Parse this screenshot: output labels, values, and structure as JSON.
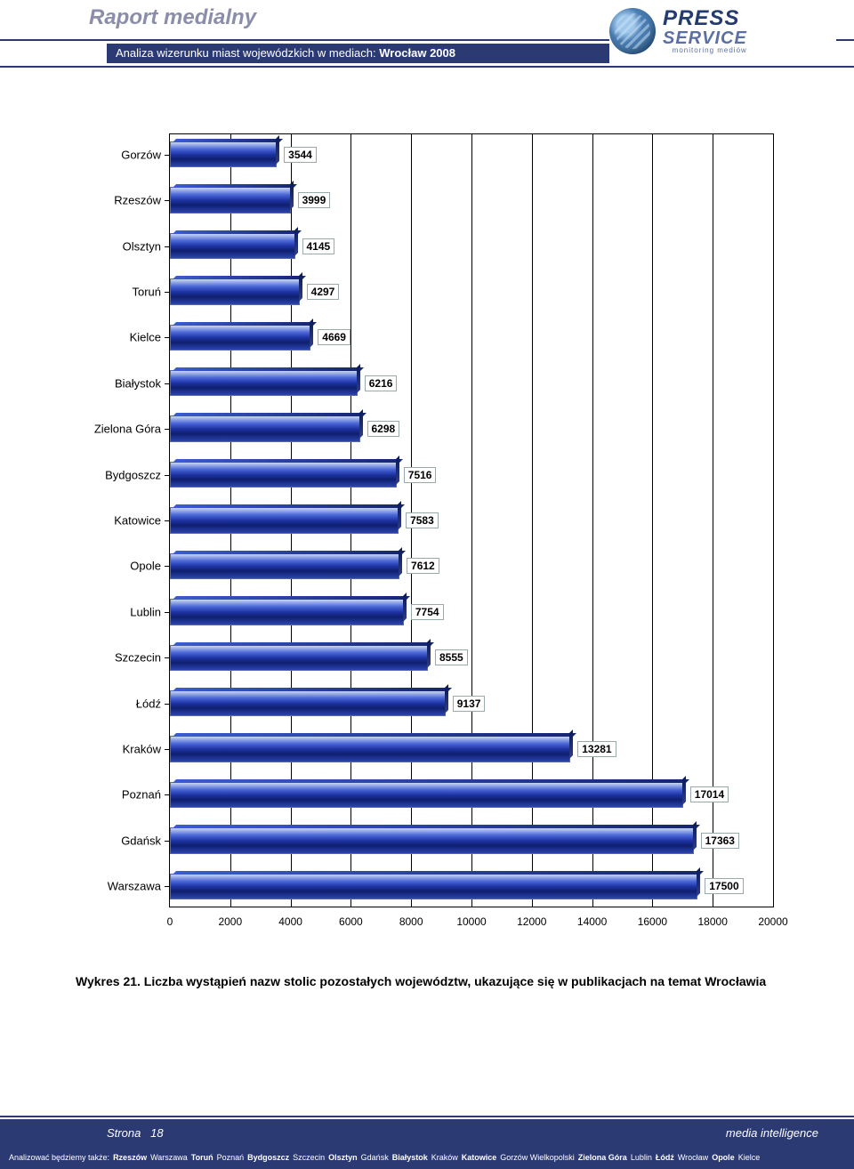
{
  "header": {
    "title": "Raport medialny",
    "subtitle_prefix": "Analiza wizerunku miast wojewódzkich w mediach: ",
    "subtitle_bold": "Wrocław 2008",
    "logo": {
      "line1": "PRESS",
      "line2": "SERVICE",
      "tag": "monitoring mediów"
    }
  },
  "chart": {
    "type": "bar-horizontal-3d",
    "x_max": 20000,
    "x_step": 2000,
    "xticks": [
      "0",
      "2000",
      "4000",
      "6000",
      "8000",
      "10000",
      "12000",
      "14000",
      "16000",
      "18000",
      "20000"
    ],
    "bar_fill_gradient": [
      "#c8d5f2",
      "#4b67d8",
      "#1d33a3",
      "#0f1f6e",
      "#2b44b0"
    ],
    "bar_border": "#5a6aa0",
    "label_fontsize": 13,
    "value_fontsize": 12,
    "background_color": "#ffffff",
    "grid_color": "#000000",
    "categories": [
      {
        "label": "Gorzów",
        "value": 3544
      },
      {
        "label": "Rzeszów",
        "value": 3999
      },
      {
        "label": "Olsztyn",
        "value": 4145
      },
      {
        "label": "Toruń",
        "value": 4297
      },
      {
        "label": "Kielce",
        "value": 4669
      },
      {
        "label": "Białystok",
        "value": 6216
      },
      {
        "label": "Zielona Góra",
        "value": 6298
      },
      {
        "label": "Bydgoszcz",
        "value": 7516
      },
      {
        "label": "Katowice",
        "value": 7583
      },
      {
        "label": "Opole",
        "value": 7612
      },
      {
        "label": "Lublin",
        "value": 7754
      },
      {
        "label": "Szczecin",
        "value": 8555
      },
      {
        "label": "Łódź",
        "value": 9137
      },
      {
        "label": "Kraków",
        "value": 13281
      },
      {
        "label": "Poznań",
        "value": 17014
      },
      {
        "label": "Gdańsk",
        "value": 17363
      },
      {
        "label": "Warszawa",
        "value": 17500
      }
    ]
  },
  "caption": "Wykres 21. Liczba wystąpień nazw stolic pozostałych województw, ukazujące się w publikacjach na temat Wrocławia",
  "footer": {
    "page_label": "Strona",
    "page_num": "18",
    "right": "media intelligence",
    "strip_prefix": "Analizować będziemy także: ",
    "strip_cities": [
      {
        "t": "Rzeszów",
        "b": true
      },
      {
        "t": "Warszawa",
        "b": false
      },
      {
        "t": "Toruń",
        "b": true
      },
      {
        "t": "Poznań",
        "b": false
      },
      {
        "t": "Bydgoszcz",
        "b": true
      },
      {
        "t": "Szczecin",
        "b": false
      },
      {
        "t": "Olsztyn",
        "b": true
      },
      {
        "t": "Gdańsk",
        "b": false
      },
      {
        "t": "Białystok",
        "b": true
      },
      {
        "t": "Kraków",
        "b": false
      },
      {
        "t": "Katowice",
        "b": true
      },
      {
        "t": "Gorzów Wielkopolski",
        "b": false
      },
      {
        "t": "Zielona Góra",
        "b": true
      },
      {
        "t": "Lublin",
        "b": false
      },
      {
        "t": "Łódź",
        "b": true
      },
      {
        "t": "Wrocław",
        "b": false
      },
      {
        "t": "Opole",
        "b": true
      },
      {
        "t": "Kielce",
        "b": false
      }
    ]
  }
}
